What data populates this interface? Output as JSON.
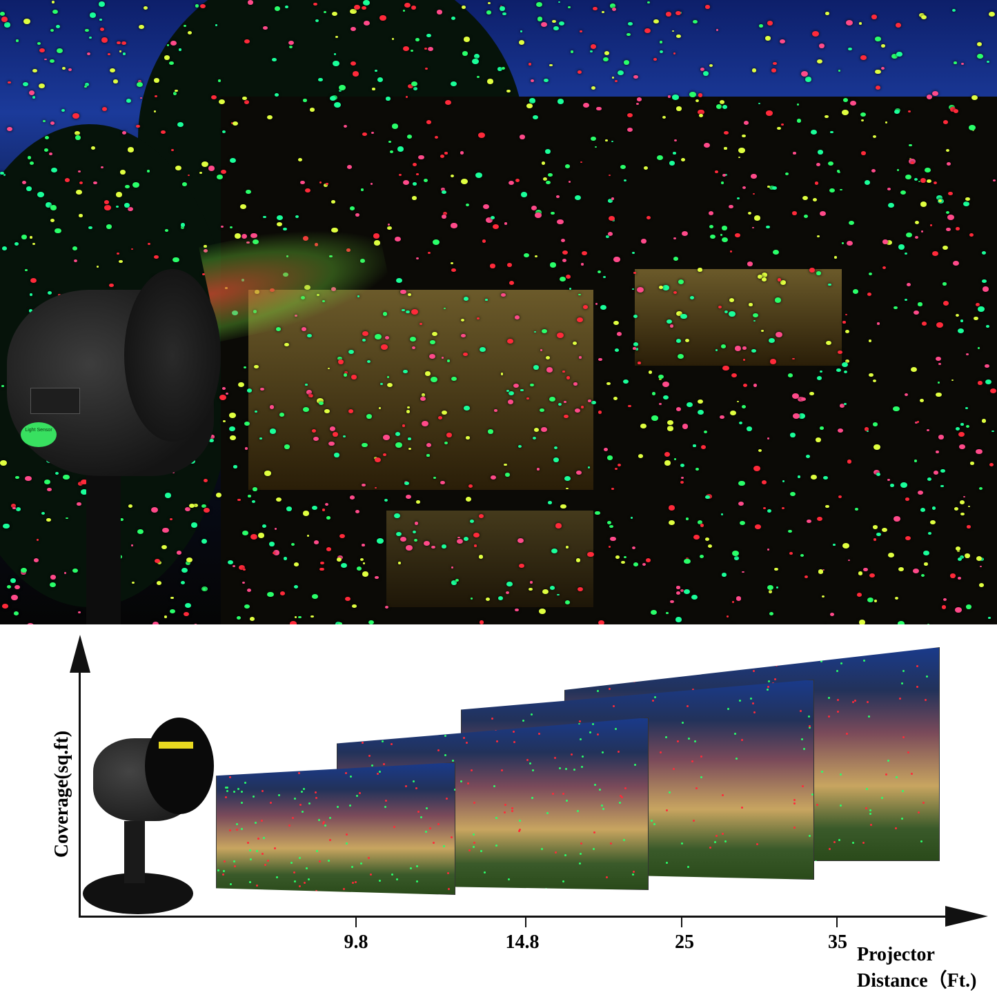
{
  "scene": {
    "product_sticker_text": "Light Sensor",
    "dot_colors": [
      "#ff2a3a",
      "#2aff6a",
      "#1aff9a",
      "#ff4a8a",
      "#e0ff40"
    ]
  },
  "chart_data": {
    "type": "diagram",
    "ylabel": "Coverage(sq.ft)",
    "xlabel_line1": "Projector",
    "xlabel_line2": "Distance（Ft.)",
    "x_ticks": [
      "9.8",
      "14.8",
      "25",
      "35"
    ]
  }
}
